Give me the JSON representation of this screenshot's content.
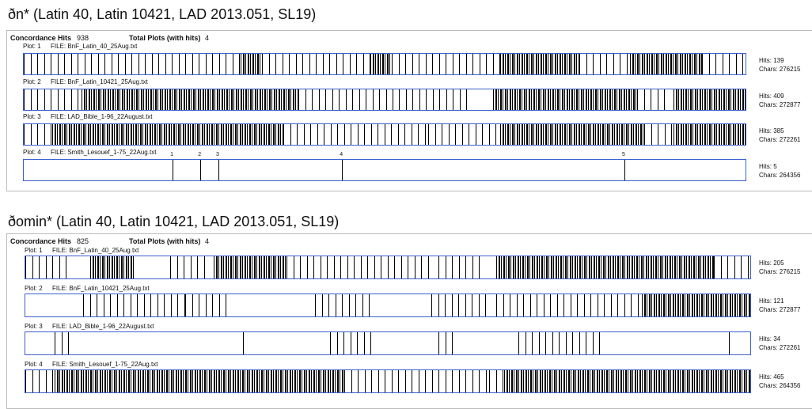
{
  "panels": [
    {
      "title": "ðn* (Latin 40, Latin 10421, LAD 2013.051, SL19)",
      "concordance_hits_label": "Concordance Hits",
      "concordance_hits": 938,
      "total_plots_label": "Total Plots (with hits)",
      "total_plots": 4,
      "plots": [
        {
          "plot": "Plot: 1",
          "file": "FILE: BnF_Latin_40_25Aug.txt",
          "hits": "Hits: 139",
          "chars": "Chars: 276215"
        },
        {
          "plot": "Plot: 2",
          "file": "FILE: BnF_Latin_10421_25Aug.txt",
          "hits": "Hits: 409",
          "chars": "Chars: 272877"
        },
        {
          "plot": "Plot: 3",
          "file": "FILE: LAD_Bible_1-96_22August.txt",
          "hits": "Hits: 385",
          "chars": "Chars: 272261"
        },
        {
          "plot": "Plot: 4",
          "file": "FILE: Smith_Lesouef_1-75_22Aug.txt",
          "hits": "Hits: 5",
          "chars": "Chars: 264356",
          "char_count": 264356,
          "marked_hits": [
            {
              "number": 1,
              "position": 54500
            },
            {
              "number": 2,
              "position": 64700
            },
            {
              "number": 3,
              "position": 71300
            },
            {
              "number": 4,
              "position": 116600
            },
            {
              "number": 5,
              "position": 220000
            }
          ]
        }
      ]
    },
    {
      "title": "ðomin* (Latin 40, Latin 10421, LAD 2013.051, SL19)",
      "concordance_hits_label": "Concordance Hits",
      "concordance_hits": 825,
      "total_plots_label": "Total Plots (with hits)",
      "total_plots": 4,
      "plots": [
        {
          "plot": "Plot: 1",
          "file": "FILE: BnF_Latin_40_25Aug.txt",
          "hits": "Hits: 205",
          "chars": "Chars: 276215"
        },
        {
          "plot": "Plot: 2",
          "file": "FILE: BnF_Latin_10421_25Aug.txt",
          "hits": "Hits: 121",
          "chars": "Chars: 272877"
        },
        {
          "plot": "Plot: 3",
          "file": "FILE: LAD_Bible_1-96_22August.txt",
          "hits": "Hits: 34",
          "chars": "Chars: 272261"
        },
        {
          "plot": "Plot: 4",
          "file": "FILE: Smith_Lesouef_1-75_22Aug.txt",
          "hits": "Hits: 465",
          "chars": "Chars: 264356"
        }
      ]
    }
  ]
}
